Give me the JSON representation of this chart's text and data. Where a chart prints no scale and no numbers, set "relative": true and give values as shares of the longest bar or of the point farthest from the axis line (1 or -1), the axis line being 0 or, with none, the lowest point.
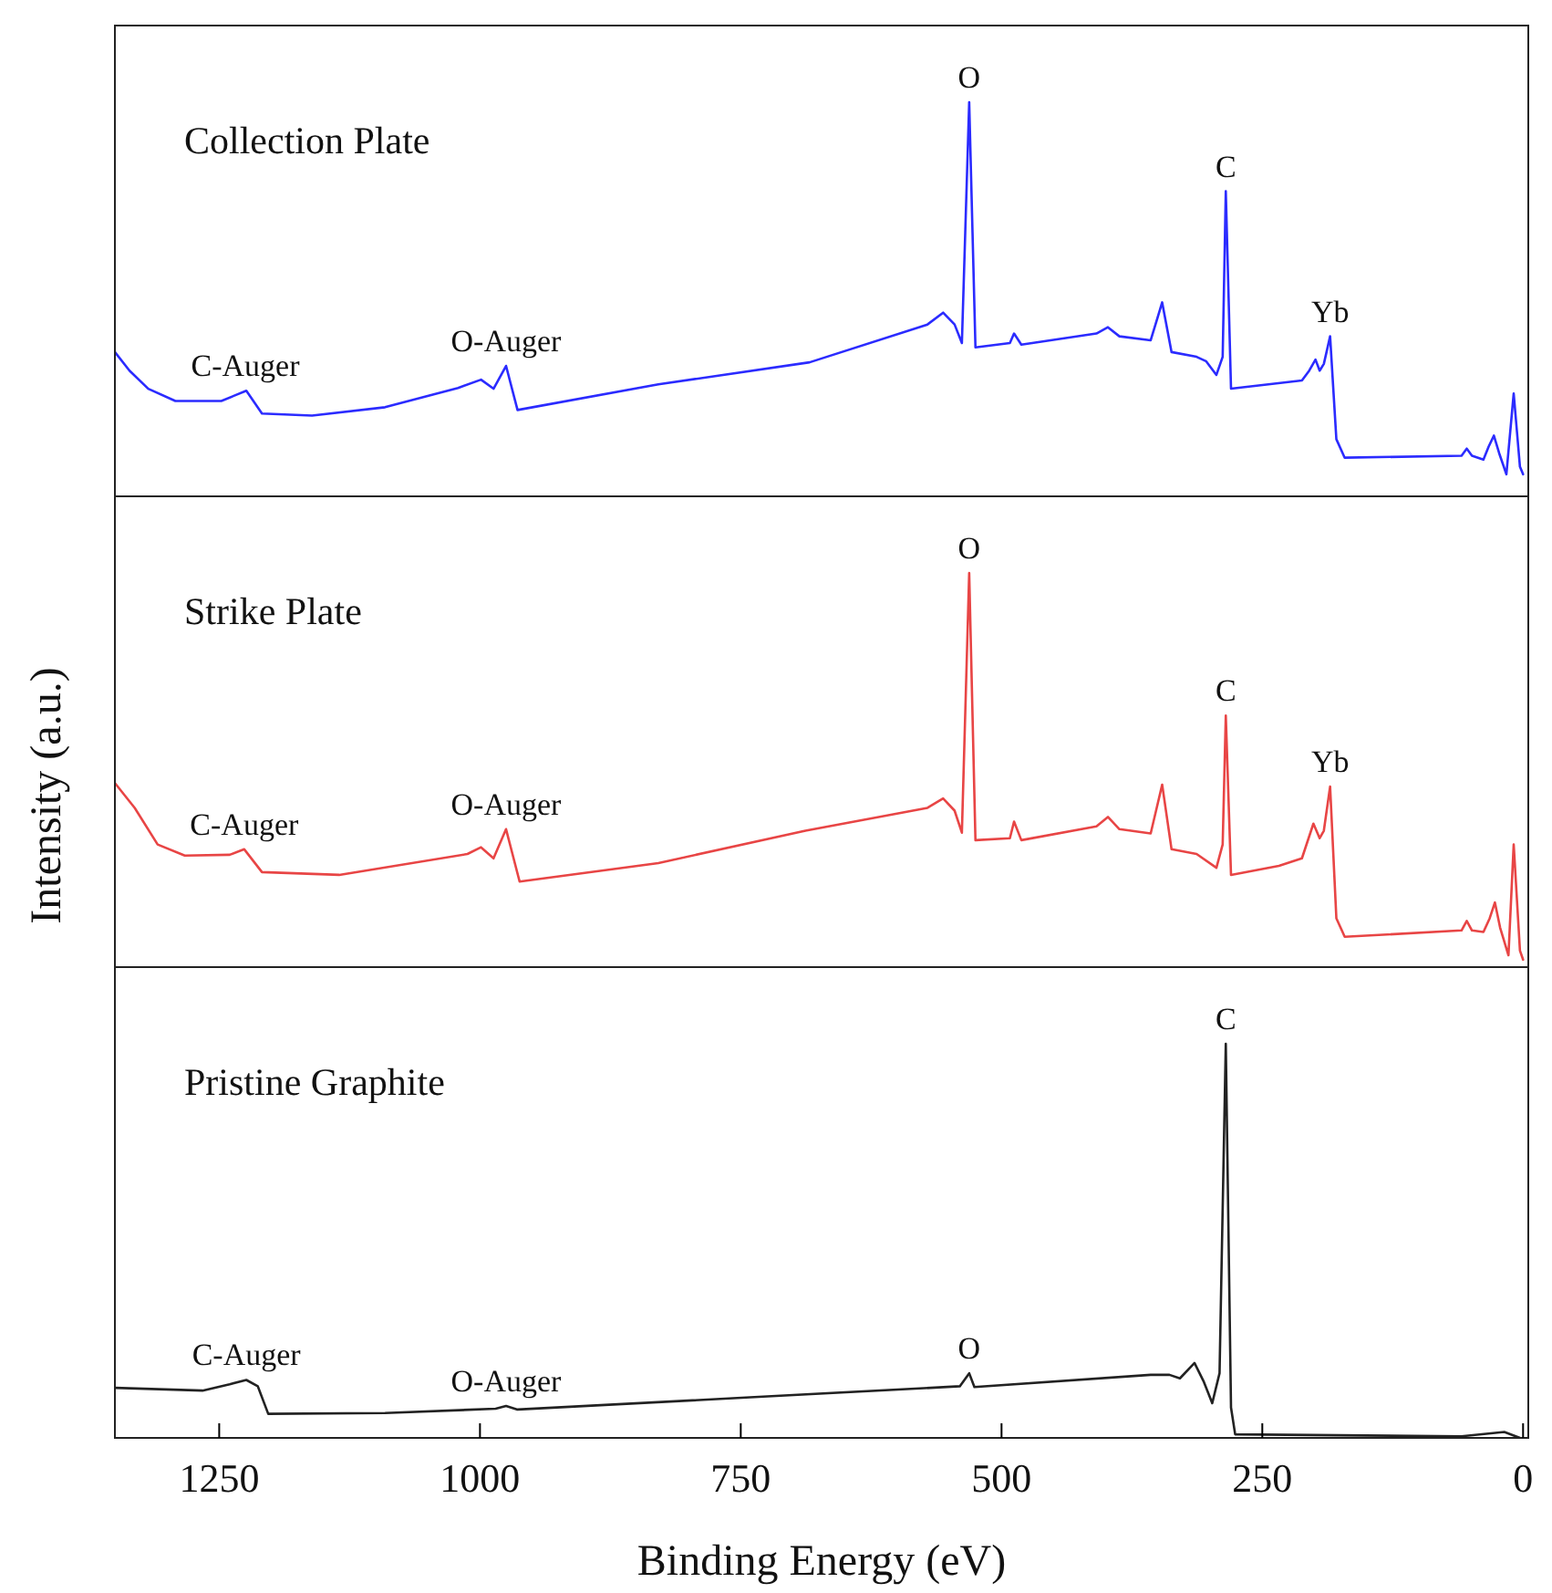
{
  "chart_data": [
    {
      "type": "line",
      "title": "Collection Plate",
      "relative": true,
      "xlim": [
        1350,
        -5
      ],
      "xticks": [
        1250,
        1000,
        750,
        500,
        250,
        0
      ],
      "tick_labels": false,
      "x": [
        1350,
        1336,
        1318,
        1292,
        1248,
        1235,
        1224,
        1209,
        1161,
        1091,
        1021,
        999,
        987,
        975,
        964,
        829,
        684,
        571,
        556,
        545,
        538,
        531,
        525,
        492,
        488,
        481,
        409,
        398,
        387,
        357,
        346,
        337,
        313,
        304,
        294,
        288,
        285,
        280,
        212,
        205,
        199,
        195,
        191,
        185,
        179,
        171,
        59,
        54,
        49,
        38,
        33,
        28,
        23,
        16,
        9,
        3,
        0
      ],
      "series": [
        {
          "color": "#2b2bff",
          "values": [
            0.366,
            0.319,
            0.273,
            0.242,
            0.242,
            0.256,
            0.268,
            0.21,
            0.205,
            0.226,
            0.275,
            0.296,
            0.273,
            0.331,
            0.219,
            0.284,
            0.34,
            0.436,
            0.466,
            0.436,
            0.389,
            1.0,
            0.378,
            0.389,
            0.413,
            0.385,
            0.413,
            0.429,
            0.406,
            0.396,
            0.492,
            0.366,
            0.354,
            0.343,
            0.308,
            0.354,
            0.774,
            0.273,
            0.294,
            0.319,
            0.347,
            0.319,
            0.336,
            0.406,
            0.145,
            0.098,
            0.103,
            0.121,
            0.103,
            0.093,
            0.126,
            0.154,
            0.11,
            0.056,
            0.261,
            0.075,
            0.056
          ]
        }
      ],
      "annotations": [
        {
          "text": "C-Auger",
          "x": 1225,
          "y": 0.268
        },
        {
          "text": "O-Auger",
          "x": 975,
          "y": 0.331
        },
        {
          "text": "O",
          "x": 531,
          "y": 1.0
        },
        {
          "text": "C",
          "x": 285,
          "y": 0.774
        },
        {
          "text": "Yb",
          "x": 185,
          "y": 0.406
        }
      ]
    },
    {
      "type": "line",
      "title": "Strike Plate",
      "ylabel": "Intensity (a.u.)",
      "relative": true,
      "xlim": [
        1350,
        -5
      ],
      "xticks": [
        1250,
        1000,
        750,
        500,
        250,
        0
      ],
      "tick_labels": false,
      "x": [
        1350,
        1331,
        1309,
        1283,
        1240,
        1226,
        1209,
        1135,
        1012,
        999,
        987,
        975,
        962,
        829,
        688,
        571,
        556,
        545,
        538,
        531,
        525,
        492,
        488,
        481,
        409,
        398,
        387,
        357,
        346,
        337,
        313,
        294,
        288,
        285,
        280,
        234,
        212,
        201,
        195,
        191,
        185,
        179,
        171,
        59,
        54,
        49,
        38,
        32,
        27,
        22,
        14,
        9,
        3,
        0
      ],
      "series": [
        {
          "color": "#e84545",
          "values": [
            0.467,
            0.404,
            0.311,
            0.283,
            0.285,
            0.299,
            0.241,
            0.234,
            0.287,
            0.304,
            0.276,
            0.35,
            0.217,
            0.264,
            0.346,
            0.404,
            0.428,
            0.397,
            0.341,
            1.0,
            0.322,
            0.327,
            0.369,
            0.322,
            0.357,
            0.381,
            0.35,
            0.339,
            0.463,
            0.299,
            0.287,
            0.252,
            0.311,
            0.638,
            0.234,
            0.257,
            0.276,
            0.364,
            0.327,
            0.346,
            0.458,
            0.124,
            0.077,
            0.093,
            0.117,
            0.093,
            0.089,
            0.124,
            0.164,
            0.1,
            0.03,
            0.311,
            0.042,
            0.019
          ]
        }
      ],
      "annotations": [
        {
          "text": "C-Auger",
          "x": 1226,
          "y": 0.299
        },
        {
          "text": "O-Auger",
          "x": 975,
          "y": 0.35
        },
        {
          "text": "O",
          "x": 531,
          "y": 1.0
        },
        {
          "text": "C",
          "x": 285,
          "y": 0.638
        },
        {
          "text": "Yb",
          "x": 185,
          "y": 0.458
        }
      ]
    },
    {
      "type": "line",
      "title": "Pristine Graphite",
      "xlabel": "Binding Energy (eV)",
      "relative": true,
      "xlim": [
        1350,
        -5
      ],
      "xticks": [
        1250,
        1000,
        750,
        500,
        250,
        0
      ],
      "tick_labels": "x",
      "x": [
        1350,
        1266,
        1240,
        1224,
        1213,
        1203,
        1091,
        985,
        975,
        964,
        741,
        540,
        531,
        526,
        357,
        339,
        329,
        315,
        306,
        298,
        291,
        285,
        280,
        276,
        59,
        18,
        3
      ],
      "series": [
        {
          "color": "#222222",
          "values": [
            0.127,
            0.12,
            0.136,
            0.147,
            0.131,
            0.061,
            0.063,
            0.074,
            0.081,
            0.072,
            0.103,
            0.131,
            0.164,
            0.129,
            0.16,
            0.16,
            0.151,
            0.19,
            0.142,
            0.088,
            0.164,
            1.0,
            0.077,
            0.009,
            0.004,
            0.015,
            0
          ]
        }
      ],
      "annotations": [
        {
          "text": "C-Auger",
          "x": 1224,
          "y": 0.147
        },
        {
          "text": "O-Auger",
          "x": 975,
          "y": 0.081
        },
        {
          "text": "O",
          "x": 531,
          "y": 0.164
        },
        {
          "text": "C",
          "x": 285,
          "y": 1.0
        }
      ]
    }
  ]
}
